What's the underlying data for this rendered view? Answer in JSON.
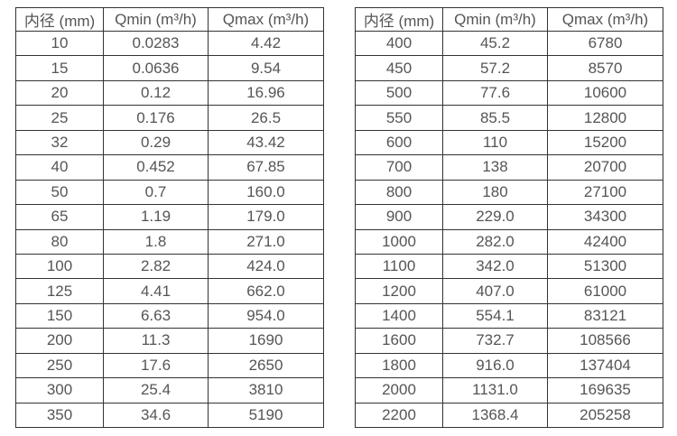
{
  "page": {
    "background_color": "#ffffff",
    "text_color": "#555555",
    "border_color": "#333333"
  },
  "tables": [
    {
      "name": "flow-spec-table-small-diameters",
      "headers": [
        "内径 (mm)",
        "Qmin (m³/h)",
        "Qmax (m³/h)"
      ],
      "rows": [
        [
          "10",
          "0.0283",
          "4.42"
        ],
        [
          "15",
          "0.0636",
          "9.54"
        ],
        [
          "20",
          "0.12",
          "16.96"
        ],
        [
          "25",
          "0.176",
          "26.5"
        ],
        [
          "32",
          "0.29",
          "43.42"
        ],
        [
          "40",
          "0.452",
          "67.85"
        ],
        [
          "50",
          "0.7",
          "160.0"
        ],
        [
          "65",
          "1.19",
          "179.0"
        ],
        [
          "80",
          "1.8",
          "271.0"
        ],
        [
          "100",
          "2.82",
          "424.0"
        ],
        [
          "125",
          "4.41",
          "662.0"
        ],
        [
          "150",
          "6.63",
          "954.0"
        ],
        [
          "200",
          "11.3",
          "1690"
        ],
        [
          "250",
          "17.6",
          "2650"
        ],
        [
          "300",
          "25.4",
          "3810"
        ],
        [
          "350",
          "34.6",
          "5190"
        ]
      ]
    },
    {
      "name": "flow-spec-table-large-diameters",
      "headers": [
        "内径 (mm)",
        "Qmin (m³/h)",
        "Qmax (m³/h)"
      ],
      "rows": [
        [
          "400",
          "45.2",
          "6780"
        ],
        [
          "450",
          "57.2",
          "8570"
        ],
        [
          "500",
          "77.6",
          "10600"
        ],
        [
          "550",
          "85.5",
          "12800"
        ],
        [
          "600",
          "110",
          "15200"
        ],
        [
          "700",
          "138",
          "20700"
        ],
        [
          "800",
          "180",
          "27100"
        ],
        [
          "900",
          "229.0",
          "34300"
        ],
        [
          "1000",
          "282.0",
          "42400"
        ],
        [
          "1100",
          "342.0",
          "51300"
        ],
        [
          "1200",
          "407.0",
          "61000"
        ],
        [
          "1400",
          "554.1",
          "83121"
        ],
        [
          "1600",
          "732.7",
          "108566"
        ],
        [
          "1800",
          "916.0",
          "137404"
        ],
        [
          "2000",
          "1131.0",
          "169635"
        ],
        [
          "2200",
          "1368.4",
          "205258"
        ]
      ]
    }
  ]
}
